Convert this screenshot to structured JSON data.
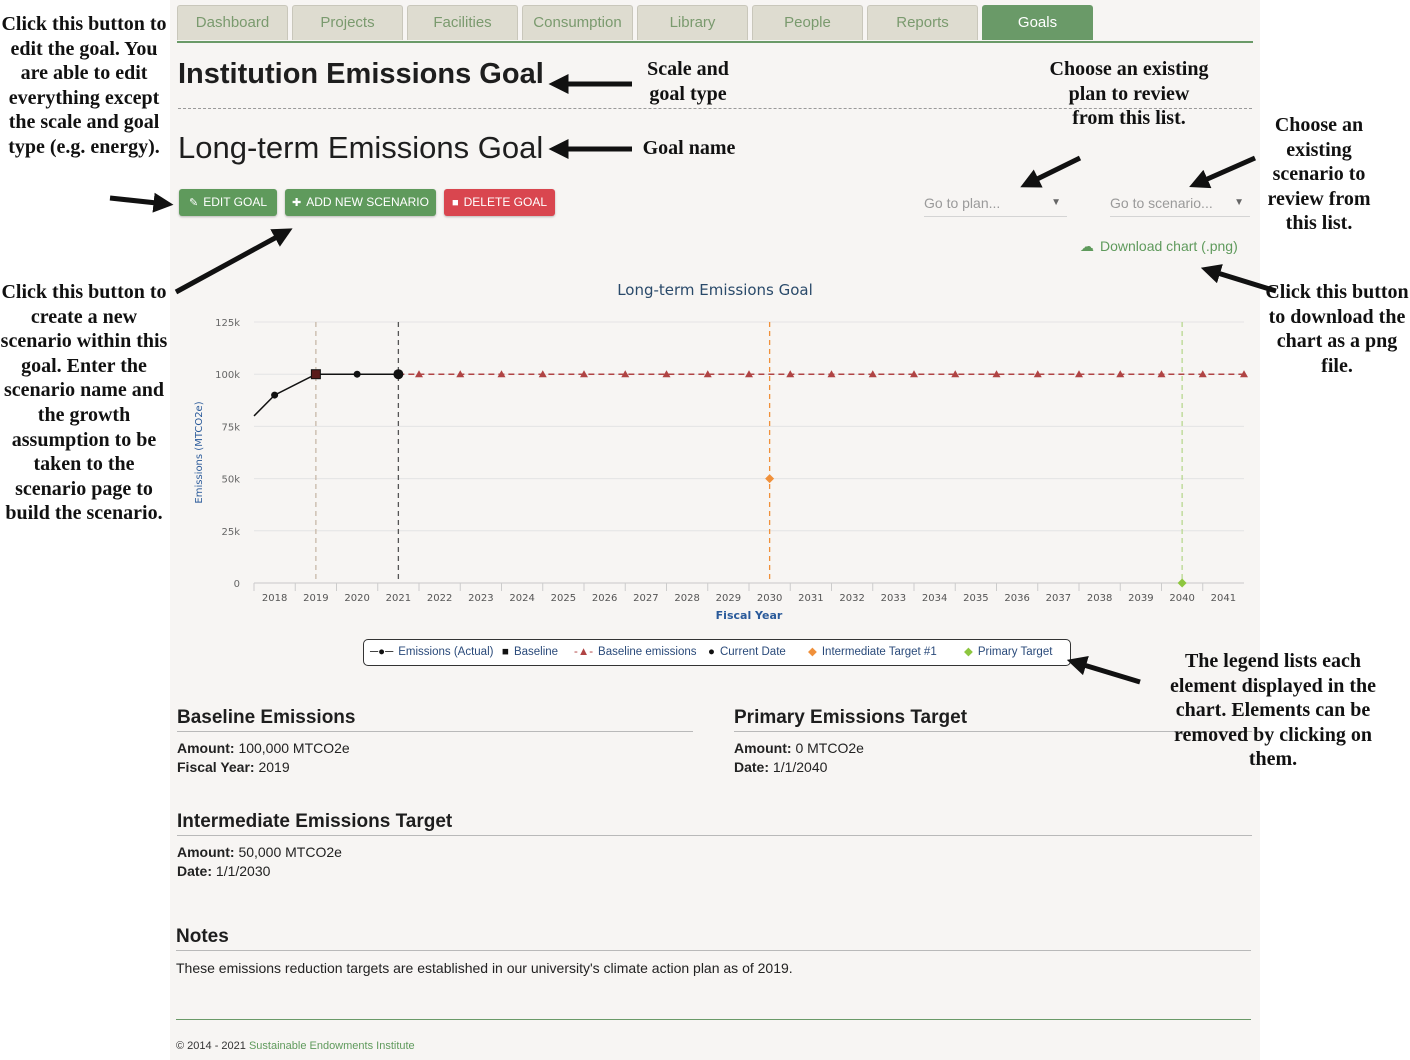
{
  "nav": {
    "tabs": [
      "Dashboard",
      "Projects",
      "Facilities",
      "Consumption",
      "Library",
      "People",
      "Reports",
      "Goals"
    ],
    "active": "Goals"
  },
  "header": {
    "scale_title": "Institution Emissions Goal",
    "goal_name": "Long-term Emissions Goal"
  },
  "toolbar": {
    "edit_label": "EDIT GOAL",
    "add_label": "ADD NEW SCENARIO",
    "delete_label": "DELETE GOAL",
    "plan_placeholder": "Go to plan...",
    "scenario_placeholder": "Go to scenario...",
    "download_label": "Download chart (.png)"
  },
  "chart_data": {
    "type": "line",
    "title": "Long-term Emissions Goal",
    "xlabel": "Fiscal Year",
    "ylabel": "Emissions (MTCO2e)",
    "ylim": [
      0,
      125000
    ],
    "y_ticks": [
      "0",
      "25k",
      "50k",
      "75k",
      "100k",
      "125k"
    ],
    "categories": [
      "2018",
      "2019",
      "2020",
      "2021",
      "2022",
      "2023",
      "2024",
      "2025",
      "2026",
      "2027",
      "2028",
      "2029",
      "2030",
      "2031",
      "2032",
      "2033",
      "2034",
      "2035",
      "2036",
      "2037",
      "2038",
      "2039",
      "2040",
      "2041"
    ],
    "grid": true,
    "series": [
      {
        "name": "Emissions (Actual)",
        "color": "#111111",
        "marker": "circle",
        "points": [
          [
            2017.5,
            80000
          ],
          [
            2018,
            90000
          ],
          [
            2019,
            100000
          ],
          [
            2020,
            100000
          ],
          [
            2021,
            100000
          ]
        ]
      },
      {
        "name": "Baseline",
        "color": "#5a1a1a",
        "marker": "square",
        "points": [
          [
            2019,
            100000
          ]
        ]
      },
      {
        "name": "Baseline emissions",
        "color": "#b04444",
        "marker": "triangle",
        "dashed": true,
        "points": [
          [
            2021,
            100000
          ],
          [
            2021.5,
            100000
          ],
          [
            2022.5,
            100000
          ],
          [
            2023.5,
            100000
          ],
          [
            2024.5,
            100000
          ],
          [
            2025.5,
            100000
          ],
          [
            2026.5,
            100000
          ],
          [
            2027.5,
            100000
          ],
          [
            2028.5,
            100000
          ],
          [
            2029.5,
            100000
          ],
          [
            2030.5,
            100000
          ],
          [
            2031.5,
            100000
          ],
          [
            2032.5,
            100000
          ],
          [
            2033.5,
            100000
          ],
          [
            2034.5,
            100000
          ],
          [
            2035.5,
            100000
          ],
          [
            2036.5,
            100000
          ],
          [
            2037.5,
            100000
          ],
          [
            2038.5,
            100000
          ],
          [
            2039.5,
            100000
          ],
          [
            2040.5,
            100000
          ],
          [
            2041.5,
            100000
          ]
        ]
      },
      {
        "name": "Current Date",
        "color": "#111111",
        "marker": "circle",
        "points": [
          [
            2021,
            100000
          ]
        ]
      },
      {
        "name": "Intermediate Target #1",
        "color": "#f0903a",
        "marker": "diamond",
        "points": [
          [
            2030,
            50000
          ]
        ]
      },
      {
        "name": "Primary Target",
        "color": "#8dc63f",
        "marker": "diamond",
        "points": [
          [
            2040,
            0
          ]
        ]
      }
    ],
    "reference_lines": [
      {
        "x": 2019,
        "color": "#c8b8a8"
      },
      {
        "x": 2021,
        "color": "#555555"
      },
      {
        "x": 2030,
        "color": "#f0903a"
      },
      {
        "x": 2040,
        "color": "#b8d890"
      }
    ]
  },
  "legend": [
    "Emissions (Actual)",
    "Baseline",
    "Baseline emissions",
    "Current Date",
    "Intermediate Target #1",
    "Primary Target"
  ],
  "baseline": {
    "title": "Baseline Emissions",
    "amount_label": "Amount:",
    "amount": "100,000 MTCO2e",
    "year_label": "Fiscal Year:",
    "year": "2019"
  },
  "primary": {
    "title": "Primary Emissions Target",
    "amount_label": "Amount:",
    "amount": "0 MTCO2e",
    "date_label": "Date:",
    "date": "1/1/2040"
  },
  "intermediate": {
    "title": "Intermediate Emissions Target",
    "amount_label": "Amount:",
    "amount": "50,000 MTCO2e",
    "date_label": "Date:",
    "date": "1/1/2030"
  },
  "notes": {
    "title": "Notes",
    "text": "These emissions reduction targets are established in our university's climate action plan as of 2019."
  },
  "footer": {
    "copyright": "© 2014 - 2021",
    "org": "Sustainable Endowments Institute"
  },
  "annotations": {
    "edit": "Click this button to edit the goal. You are able to edit everything except the scale and goal type (e.g. energy).",
    "add": "Click this button to create a new scenario within this goal. Enter the scenario name and the growth assumption to be taken to the scenario page to build the scenario.",
    "scale": "Scale and goal type",
    "goal_name": "Goal name",
    "plan": "Choose an existing plan to review from this list.",
    "scenario": "Choose an existing scenario to review from this list.",
    "download": "Click this button to download the chart as a png file.",
    "legend": "The legend lists each element displayed in the chart. Elements can be removed by clicking on them."
  }
}
